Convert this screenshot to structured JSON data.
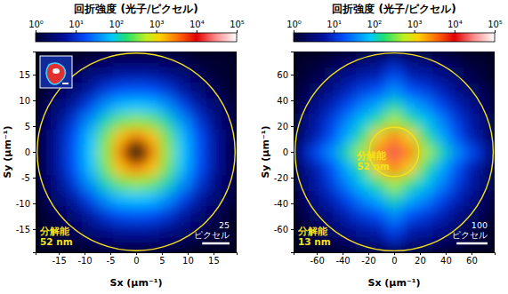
{
  "chart_data": [
    {
      "type": "heatmap",
      "x_label": "Sx (μm⁻¹)",
      "y_label": "Sy (μm⁻¹)",
      "xlim": [
        -19.5,
        19.5
      ],
      "ylim": [
        -19.5,
        19.5
      ],
      "xticks": [
        -15,
        -10,
        -5,
        0,
        5,
        10,
        15
      ],
      "yticks": [
        -15,
        -10,
        -5,
        0,
        5,
        10,
        15
      ],
      "x": [
        -18,
        -15,
        -12,
        -9,
        -6,
        -3,
        0,
        3,
        6,
        9,
        12,
        15,
        18
      ],
      "y": [
        -18,
        -15,
        -12,
        -9,
        -6,
        -3,
        0,
        3,
        6,
        9,
        12,
        15,
        18
      ],
      "cells": [
        [
          1,
          1,
          1,
          1.5,
          2,
          2,
          2,
          2,
          2,
          1.5,
          1,
          1,
          1
        ],
        [
          1,
          1,
          2,
          3,
          4,
          6,
          6,
          6,
          4,
          3,
          2,
          1,
          1
        ],
        [
          1,
          2,
          3,
          6,
          12,
          18,
          20,
          18,
          12,
          6,
          3,
          2,
          1
        ],
        [
          1.5,
          3,
          6,
          15,
          40,
          70,
          80,
          70,
          40,
          15,
          6,
          3,
          1.5
        ],
        [
          2,
          4,
          12,
          40,
          120,
          300,
          400,
          300,
          120,
          40,
          12,
          4,
          2
        ],
        [
          2,
          6,
          18,
          70,
          300,
          1500,
          3000,
          1500,
          300,
          70,
          18,
          6,
          2
        ],
        [
          2,
          6,
          20,
          80,
          400,
          3000,
          null,
          3000,
          400,
          80,
          20,
          6,
          2
        ],
        [
          2,
          6,
          18,
          70,
          300,
          1500,
          3000,
          1500,
          300,
          70,
          18,
          6,
          2
        ],
        [
          2,
          4,
          12,
          40,
          120,
          300,
          400,
          300,
          120,
          40,
          12,
          4,
          2
        ],
        [
          1.5,
          3,
          6,
          15,
          40,
          70,
          80,
          70,
          40,
          15,
          6,
          3,
          1.5
        ],
        [
          1,
          2,
          3,
          6,
          12,
          18,
          20,
          18,
          12,
          6,
          3,
          2,
          1
        ],
        [
          1,
          1,
          2,
          3,
          4,
          6,
          6,
          6,
          4,
          3,
          2,
          1,
          1
        ],
        [
          1,
          1,
          1,
          1.5,
          2,
          2,
          2,
          2,
          2,
          1.5,
          1,
          1,
          1
        ]
      ],
      "colorbar": {
        "title": "回折強度 (光子/ピクセル)",
        "log": true,
        "range": [
          1,
          100000
        ],
        "ticks": [
          {
            "value": 1,
            "label": "10⁰"
          },
          {
            "value": 10,
            "label": "10¹"
          },
          {
            "value": 100,
            "label": "10²"
          },
          {
            "value": 1000,
            "label": "10³"
          },
          {
            "value": 10000,
            "label": "10⁴"
          },
          {
            "value": 100000,
            "label": "10⁵"
          }
        ]
      },
      "circles": [
        {
          "radius": 19.2,
          "label": [
            "分解能",
            "52 nm"
          ]
        }
      ],
      "scale_bar": {
        "length": 5.3,
        "label": [
          "25",
          "ピクセル"
        ]
      }
    },
    {
      "type": "heatmap",
      "x_label": "Sx (μm⁻¹)",
      "y_label": "Sy (μm⁻¹)",
      "xlim": [
        -78,
        78
      ],
      "ylim": [
        -78,
        78
      ],
      "xticks": [
        -60,
        -40,
        -20,
        0,
        20,
        40,
        60
      ],
      "yticks": [
        -60,
        -40,
        -20,
        0,
        20,
        40,
        60
      ],
      "x": [
        -72,
        -60,
        -48,
        -36,
        -24,
        -12,
        0,
        12,
        24,
        36,
        48,
        60,
        72
      ],
      "y": [
        -72,
        -60,
        -48,
        -36,
        -24,
        -12,
        0,
        12,
        24,
        36,
        48,
        60,
        72
      ],
      "cells": [
        [
          1,
          1,
          1.5,
          2,
          2.5,
          3,
          6,
          3,
          2.5,
          2,
          1.5,
          1,
          1
        ],
        [
          1,
          1.5,
          2.5,
          4,
          6,
          7,
          16,
          7,
          6,
          4,
          2.5,
          1.5,
          1
        ],
        [
          1.5,
          2.5,
          4,
          8,
          13,
          18,
          40,
          18,
          13,
          8,
          4,
          2.5,
          1.5
        ],
        [
          2,
          4,
          8,
          16,
          35,
          60,
          140,
          60,
          35,
          16,
          8,
          4,
          2
        ],
        [
          2.5,
          6,
          13,
          35,
          90,
          180,
          500,
          180,
          90,
          35,
          13,
          6,
          2.5
        ],
        [
          3,
          7,
          18,
          60,
          180,
          1200,
          3000,
          1200,
          180,
          60,
          18,
          7,
          3
        ],
        [
          6,
          16,
          40,
          140,
          500,
          3000,
          20000,
          3000,
          500,
          140,
          40,
          16,
          6
        ],
        [
          3,
          7,
          18,
          60,
          180,
          1200,
          3000,
          1200,
          180,
          60,
          18,
          7,
          3
        ],
        [
          2.5,
          6,
          13,
          35,
          90,
          180,
          500,
          180,
          90,
          35,
          13,
          6,
          2.5
        ],
        [
          2,
          4,
          8,
          16,
          35,
          60,
          140,
          60,
          35,
          16,
          8,
          4,
          2
        ],
        [
          1.5,
          2.5,
          4,
          8,
          13,
          18,
          40,
          18,
          13,
          8,
          4,
          2.5,
          1.5
        ],
        [
          1,
          1.5,
          2.5,
          4,
          6,
          7,
          16,
          7,
          6,
          4,
          2.5,
          1.5,
          1
        ],
        [
          1,
          1,
          1.5,
          2,
          2.5,
          3,
          6,
          3,
          2.5,
          2,
          1.5,
          1,
          1
        ]
      ],
      "colorbar": {
        "title": "回折強度 (光子/ピクセル)",
        "log": true,
        "range": [
          1,
          100000
        ],
        "ticks": [
          {
            "value": 1,
            "label": "10⁰"
          },
          {
            "value": 10,
            "label": "10¹"
          },
          {
            "value": 100,
            "label": "10²"
          },
          {
            "value": 1000,
            "label": "10³"
          },
          {
            "value": 10000,
            "label": "10⁴"
          },
          {
            "value": 100000,
            "label": "10⁵"
          }
        ]
      },
      "circles": [
        {
          "radius": 76.9,
          "label": [
            "分解能",
            "13 nm"
          ]
        },
        {
          "radius": 19.2,
          "label": [
            "分解能",
            "52 nm"
          ]
        }
      ],
      "scale_bar": {
        "length": 24,
        "label": [
          "100",
          "ピクセル"
        ]
      }
    }
  ]
}
